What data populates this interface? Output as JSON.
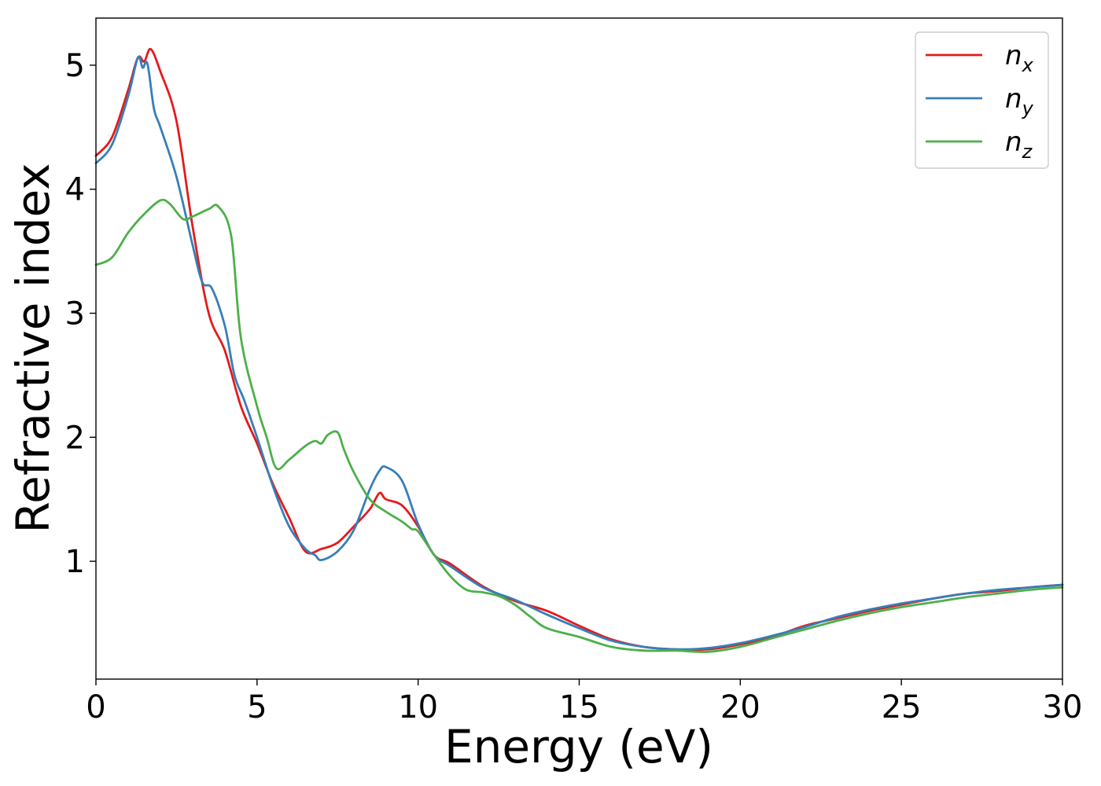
{
  "chart_data": {
    "type": "line",
    "title": "",
    "xlabel": "Energy (eV)",
    "ylabel": "Refractive index",
    "xlim": [
      0,
      30
    ],
    "ylim": [
      0.05,
      5.38
    ],
    "xticks": [
      0,
      5,
      10,
      15,
      20,
      25,
      30
    ],
    "xtick_labels": [
      "0",
      "5",
      "10",
      "15",
      "20",
      "25",
      "30"
    ],
    "yticks": [
      1,
      2,
      3,
      4,
      5
    ],
    "ytick_labels": [
      "1",
      "2",
      "3",
      "4",
      "5"
    ],
    "grid": false,
    "legend_position": "top-right",
    "series": [
      {
        "name": "n_x",
        "label_main": "n",
        "label_sub": "x",
        "color": "#e41a1c",
        "x": [
          0,
          0.5,
          1.0,
          1.3,
          1.5,
          1.7,
          2.0,
          2.5,
          3.0,
          3.5,
          4.0,
          4.5,
          5.0,
          5.5,
          6.0,
          6.5,
          7.0,
          7.5,
          8.0,
          8.5,
          8.8,
          9.0,
          9.5,
          10.0,
          10.5,
          11.0,
          12.0,
          13.0,
          14.0,
          15.0,
          16.0,
          17.0,
          18.0,
          19.0,
          20.0,
          21.0,
          22.0,
          23.0,
          24.0,
          25.0,
          26.0,
          27.0,
          28.0,
          29.0,
          30.0
        ],
        "y": [
          4.27,
          4.42,
          4.8,
          5.06,
          5.03,
          5.13,
          4.95,
          4.55,
          3.7,
          3.0,
          2.7,
          2.25,
          1.95,
          1.62,
          1.35,
          1.08,
          1.1,
          1.15,
          1.28,
          1.42,
          1.55,
          1.5,
          1.45,
          1.28,
          1.05,
          0.98,
          0.8,
          0.68,
          0.6,
          0.48,
          0.37,
          0.31,
          0.29,
          0.29,
          0.33,
          0.39,
          0.48,
          0.54,
          0.6,
          0.65,
          0.7,
          0.74,
          0.76,
          0.79,
          0.81
        ]
      },
      {
        "name": "n_y",
        "label_main": "n",
        "label_sub": "y",
        "color": "#377eb8",
        "x": [
          0,
          0.5,
          1.0,
          1.3,
          1.45,
          1.6,
          1.8,
          2.0,
          2.5,
          3.0,
          3.3,
          3.6,
          4.0,
          4.3,
          4.6,
          5.0,
          5.5,
          6.0,
          6.5,
          6.8,
          7.0,
          7.5,
          8.0,
          8.5,
          8.8,
          9.0,
          9.5,
          10.0,
          10.5,
          11.0,
          12.0,
          13.0,
          14.0,
          15.0,
          16.0,
          17.0,
          18.0,
          19.0,
          20.0,
          21.0,
          22.0,
          23.0,
          24.0,
          25.0,
          26.0,
          27.0,
          28.0,
          29.0,
          30.0
        ],
        "y": [
          4.21,
          4.36,
          4.75,
          5.06,
          4.98,
          5.01,
          4.65,
          4.5,
          4.1,
          3.55,
          3.25,
          3.2,
          2.9,
          2.5,
          2.3,
          2.0,
          1.6,
          1.28,
          1.1,
          1.05,
          1.01,
          1.08,
          1.25,
          1.58,
          1.73,
          1.76,
          1.65,
          1.3,
          1.05,
          0.96,
          0.79,
          0.69,
          0.57,
          0.46,
          0.36,
          0.31,
          0.29,
          0.3,
          0.34,
          0.4,
          0.47,
          0.55,
          0.61,
          0.66,
          0.7,
          0.74,
          0.77,
          0.79,
          0.81
        ]
      },
      {
        "name": "n_z",
        "label_main": "n",
        "label_sub": "z",
        "color": "#4daf4a",
        "x": [
          0,
          0.5,
          1.0,
          1.5,
          2.0,
          2.3,
          2.7,
          3.0,
          3.5,
          3.8,
          4.2,
          4.5,
          5.0,
          5.3,
          5.6,
          6.0,
          6.5,
          6.8,
          7.0,
          7.2,
          7.5,
          7.7,
          8.0,
          8.5,
          9.0,
          9.5,
          9.8,
          10.0,
          10.5,
          11.0,
          11.5,
          12.0,
          12.5,
          13.0,
          13.5,
          14.0,
          15.0,
          16.0,
          17.0,
          18.0,
          19.0,
          20.0,
          21.0,
          22.0,
          23.0,
          24.0,
          25.0,
          26.0,
          27.0,
          28.0,
          29.0,
          30.0
        ],
        "y": [
          3.39,
          3.45,
          3.65,
          3.8,
          3.91,
          3.88,
          3.76,
          3.78,
          3.84,
          3.86,
          3.62,
          2.8,
          2.25,
          2.0,
          1.75,
          1.82,
          1.93,
          1.97,
          1.95,
          2.02,
          2.04,
          1.9,
          1.72,
          1.5,
          1.4,
          1.32,
          1.26,
          1.24,
          1.05,
          0.88,
          0.77,
          0.75,
          0.72,
          0.65,
          0.55,
          0.46,
          0.39,
          0.31,
          0.28,
          0.28,
          0.27,
          0.31,
          0.38,
          0.45,
          0.52,
          0.58,
          0.63,
          0.67,
          0.71,
          0.74,
          0.77,
          0.79
        ]
      }
    ]
  }
}
